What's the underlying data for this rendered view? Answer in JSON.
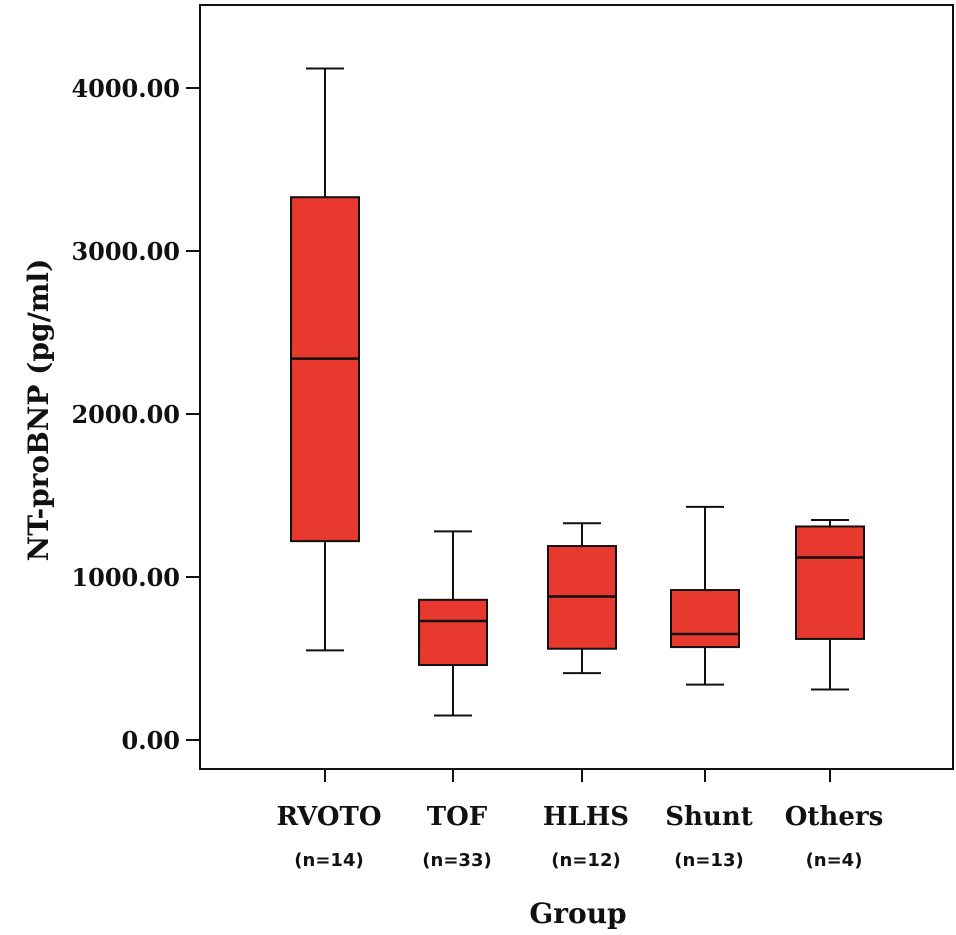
{
  "chart_data": {
    "type": "boxplot",
    "title": "",
    "xlabel": "Group",
    "ylabel": "NT-proBNP (pg/ml)",
    "ylim": [
      -200,
      4500
    ],
    "yticks": [
      0,
      1000,
      2000,
      3000,
      4000
    ],
    "ytick_labels": [
      "0.00",
      "1000.00",
      "2000.00",
      "3000.00",
      "4000.00"
    ],
    "box_color": "#e8392e",
    "categories": [
      {
        "label": "RVOTO",
        "n_label": "(n=14)",
        "whisker_low": 550,
        "q1": 1220,
        "median": 2340,
        "q3": 3330,
        "whisker_high": 4120
      },
      {
        "label": "TOF",
        "n_label": "(n=33)",
        "whisker_low": 150,
        "q1": 460,
        "median": 730,
        "q3": 860,
        "whisker_high": 1280
      },
      {
        "label": "HLHS",
        "n_label": "(n=12)",
        "whisker_low": 410,
        "q1": 560,
        "median": 880,
        "q3": 1190,
        "whisker_high": 1330
      },
      {
        "label": "Shunt",
        "n_label": "(n=13)",
        "whisker_low": 340,
        "q1": 570,
        "median": 650,
        "q3": 920,
        "whisker_high": 1430
      },
      {
        "label": "Others",
        "n_label": "(n=4)",
        "whisker_low": 310,
        "q1": 620,
        "median": 1120,
        "q3": 1310,
        "whisker_high": 1350
      }
    ]
  }
}
